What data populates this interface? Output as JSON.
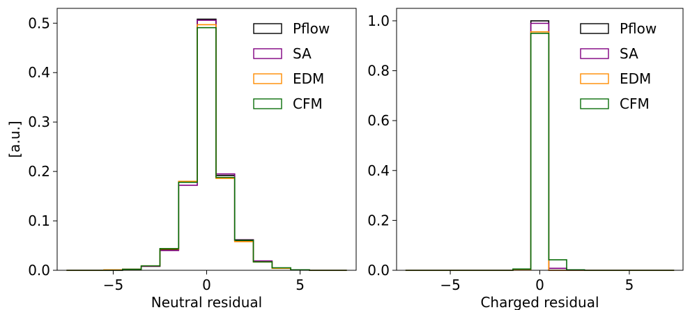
{
  "chart_data": [
    {
      "type": "step-histogram",
      "xlabel": "Neutral residual",
      "ylabel": "[a.u.]",
      "xlim": [
        -8,
        8
      ],
      "ylim": [
        0,
        0.53
      ],
      "xticks": [
        -5,
        0,
        5
      ],
      "xtick_labels": [
        "−5",
        "0",
        "5"
      ],
      "yticks": [
        0.0,
        0.1,
        0.2,
        0.3,
        0.4,
        0.5
      ],
      "ytick_labels": [
        "0.0",
        "0.1",
        "0.2",
        "0.3",
        "0.4",
        "0.5"
      ],
      "legend_position": "top-right",
      "grid": false,
      "bin_edges": [
        -7.5,
        -6.5,
        -5.5,
        -4.5,
        -3.5,
        -2.5,
        -1.5,
        -0.5,
        0.5,
        1.5,
        2.5,
        3.5,
        4.5,
        5.5,
        6.5,
        7.5
      ],
      "series": [
        {
          "name": "Pflow",
          "color": "#000000",
          "values": [
            0.0,
            0.0,
            0.0,
            0.002,
            0.008,
            0.042,
            0.178,
            0.508,
            0.192,
            0.06,
            0.018,
            0.004,
            0.001,
            0.0,
            0.0
          ]
        },
        {
          "name": "SA",
          "color": "#800080",
          "values": [
            0.0,
            0.0,
            0.0,
            0.002,
            0.008,
            0.04,
            0.172,
            0.506,
            0.195,
            0.062,
            0.019,
            0.004,
            0.001,
            0.0,
            0.0
          ]
        },
        {
          "name": "EDM",
          "color": "#ff8c00",
          "values": [
            0.0,
            0.0,
            0.001,
            0.002,
            0.009,
            0.043,
            0.18,
            0.497,
            0.186,
            0.058,
            0.017,
            0.004,
            0.001,
            0.0,
            0.0
          ]
        },
        {
          "name": "CFM",
          "color": "#0a6e0a",
          "values": [
            0.0,
            0.0,
            0.0,
            0.002,
            0.009,
            0.044,
            0.178,
            0.491,
            0.188,
            0.061,
            0.017,
            0.005,
            0.001,
            0.0,
            0.0
          ]
        }
      ]
    },
    {
      "type": "step-histogram",
      "xlabel": "Charged residual",
      "ylabel": "",
      "xlim": [
        -8,
        8
      ],
      "ylim": [
        0,
        1.05
      ],
      "xticks": [
        -5,
        0,
        5
      ],
      "xtick_labels": [
        "−5",
        "0",
        "5"
      ],
      "yticks": [
        0.0,
        0.2,
        0.4,
        0.6,
        0.8,
        1.0
      ],
      "ytick_labels": [
        "0.0",
        "0.2",
        "0.4",
        "0.6",
        "0.8",
        "1.0"
      ],
      "legend_position": "top-right",
      "grid": false,
      "bin_edges": [
        -7.5,
        -6.5,
        -5.5,
        -4.5,
        -3.5,
        -2.5,
        -1.5,
        -0.5,
        0.5,
        1.5,
        2.5,
        3.5,
        4.5,
        5.5,
        6.5,
        7.5
      ],
      "series": [
        {
          "name": "Pflow",
          "color": "#000000",
          "values": [
            0,
            0,
            0,
            0,
            0,
            0,
            0.002,
            1.0,
            0.0,
            0.0,
            0,
            0,
            0,
            0,
            0
          ]
        },
        {
          "name": "SA",
          "color": "#800080",
          "values": [
            0,
            0,
            0,
            0,
            0,
            0,
            0.002,
            0.99,
            0.008,
            0.0,
            0,
            0,
            0,
            0,
            0
          ]
        },
        {
          "name": "EDM",
          "color": "#ff8c00",
          "values": [
            0,
            0,
            0,
            0,
            0,
            0,
            0.003,
            0.956,
            0.0,
            0.0,
            0,
            0,
            0,
            0,
            0
          ]
        },
        {
          "name": "CFM",
          "color": "#0a6e0a",
          "values": [
            0,
            0,
            0,
            0,
            0,
            0,
            0.005,
            0.95,
            0.042,
            0.002,
            0,
            0,
            0,
            0,
            0
          ]
        }
      ]
    }
  ]
}
